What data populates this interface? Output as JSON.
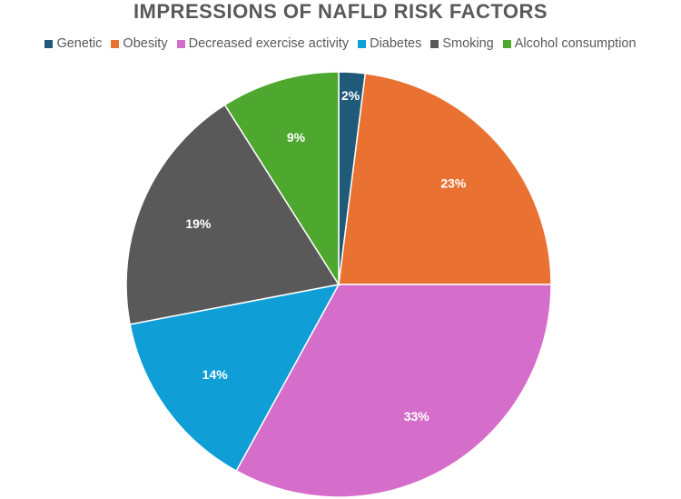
{
  "chart_data": {
    "type": "pie",
    "title": "IMPRESSIONS OF NAFLD RISK FACTORS",
    "legend_position": "top",
    "slices": [
      {
        "name": "Genetic",
        "value": 2,
        "label": "2%",
        "color": "#1f5a78"
      },
      {
        "name": "Obesity",
        "value": 23,
        "label": "23%",
        "color": "#e97132"
      },
      {
        "name": "Decreased exercise activity",
        "value": 33,
        "label": "33%",
        "color": "#d56dcb"
      },
      {
        "name": "Diabetes",
        "value": 14,
        "label": "14%",
        "color": "#0f9ed5"
      },
      {
        "name": "Smoking",
        "value": 19,
        "label": "19%",
        "color": "#595959"
      },
      {
        "name": "Alcohol consumption",
        "value": 9,
        "label": "9%",
        "color": "#4ea72e"
      }
    ]
  }
}
